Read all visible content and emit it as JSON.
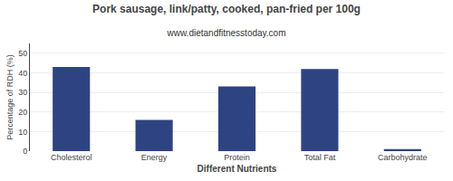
{
  "chart_data": {
    "type": "bar",
    "title": "Pork sausage, link/patty, cooked, pan-fried per 100g",
    "subtitle": "www.dietandfitnesstoday.com",
    "xlabel": "Different Nutrients",
    "ylabel": "Percentage of RDH (%)",
    "categories": [
      "Cholesterol",
      "Energy",
      "Protein",
      "Total Fat",
      "Carbohydrate"
    ],
    "values": [
      43,
      16,
      33,
      42,
      1
    ],
    "color": "#2e4482",
    "ylim": [
      0,
      55
    ],
    "yticks": [
      0,
      10,
      20,
      30,
      40,
      50
    ],
    "grid": true
  }
}
